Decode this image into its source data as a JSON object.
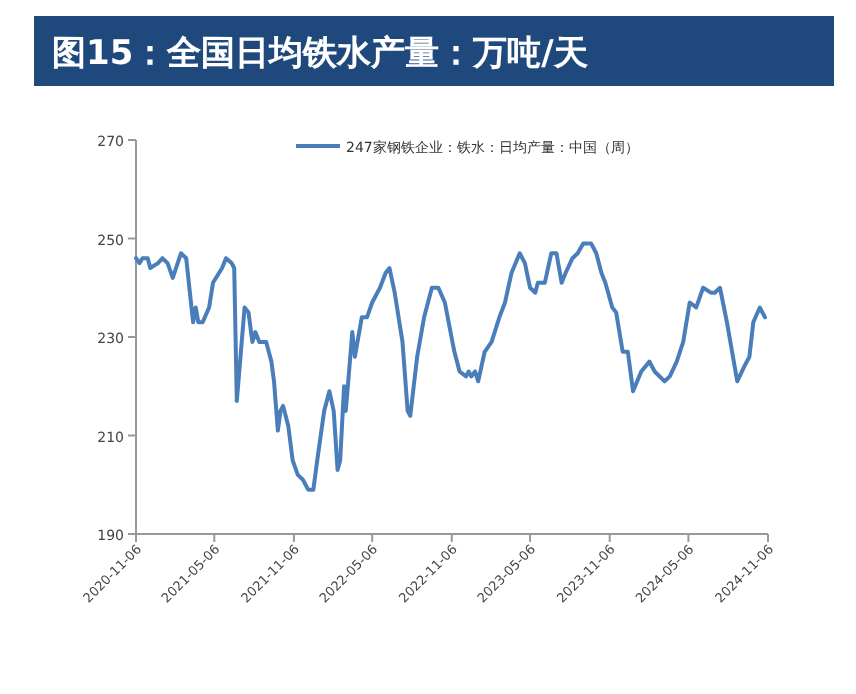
{
  "chart_data": {
    "type": "line",
    "title": "图15：全国日均铁水产量：万吨/天",
    "x": [
      "2020-11-06",
      "2020-11-14",
      "2020-11-21",
      "2020-12-03",
      "2020-12-09",
      "2020-12-27",
      "2021-01-06",
      "2021-01-18",
      "2021-01-30",
      "2021-02-18",
      "2021-03-02",
      "2021-03-18",
      "2021-03-24",
      "2021-03-30",
      "2021-04-09",
      "2021-04-24",
      "2021-05-03",
      "2021-05-24",
      "2021-06-02",
      "2021-06-15",
      "2021-06-21",
      "2021-06-27",
      "2021-07-15",
      "2021-07-24",
      "2021-08-02",
      "2021-08-09",
      "2021-08-18",
      "2021-09-03",
      "2021-09-15",
      "2021-09-21",
      "2021-09-30",
      "2021-10-06",
      "2021-10-12",
      "2021-10-24",
      "2021-11-03",
      "2021-11-15",
      "2021-11-27",
      "2021-12-09",
      "2021-12-21",
      "2021-12-30",
      "2022-01-15",
      "2022-01-27",
      "2022-02-06",
      "2022-02-15",
      "2022-02-21",
      "2022-03-02",
      "2022-03-06",
      "2022-03-21",
      "2022-03-27",
      "2022-04-12",
      "2022-04-24",
      "2022-05-06",
      "2022-05-24",
      "2022-06-06",
      "2022-06-15",
      "2022-06-27",
      "2022-07-15",
      "2022-07-27",
      "2022-08-02",
      "2022-08-18",
      "2022-09-03",
      "2022-09-21",
      "2022-10-06",
      "2022-10-21",
      "2022-11-12",
      "2022-11-24",
      "2022-12-09",
      "2022-12-15",
      "2022-12-21",
      "2022-12-30",
      "2023-01-06",
      "2023-01-21",
      "2023-02-06",
      "2023-02-24",
      "2023-03-09",
      "2023-03-24",
      "2023-04-12",
      "2023-04-24",
      "2023-05-06",
      "2023-05-18",
      "2023-05-24",
      "2023-06-09",
      "2023-06-24",
      "2023-07-06",
      "2023-07-18",
      "2023-07-27",
      "2023-08-12",
      "2023-08-24",
      "2023-09-06",
      "2023-09-24",
      "2023-10-06",
      "2023-10-18",
      "2023-10-27",
      "2023-11-12",
      "2023-11-21",
      "2023-12-06",
      "2023-12-18",
      "2023-12-30",
      "2024-01-18",
      "2024-02-06",
      "2024-02-18",
      "2024-03-12",
      "2024-03-24",
      "2024-04-09",
      "2024-04-24",
      "2024-05-09",
      "2024-05-24",
      "2024-06-09",
      "2024-06-27",
      "2024-07-06",
      "2024-07-18",
      "2024-08-03",
      "2024-08-27",
      "2024-09-12",
      "2024-09-24",
      "2024-10-03",
      "2024-10-18",
      "2024-10-30"
    ],
    "series": [
      {
        "name": "247家钢铁企业：铁水：日均产量：中国（周）",
        "color": "#4a7ebb",
        "values": [
          246,
          245,
          246,
          246,
          244,
          245,
          246,
          245,
          242,
          247,
          246,
          233,
          236,
          233,
          233,
          236,
          241,
          244,
          246,
          245,
          244,
          217,
          236,
          235,
          229,
          231,
          229,
          229,
          225,
          221,
          211,
          215,
          216,
          212,
          205,
          202,
          201,
          199,
          199,
          205,
          215,
          219,
          215,
          203,
          205,
          220,
          215,
          231,
          226,
          234,
          234,
          237,
          240,
          243,
          244,
          239,
          229,
          215,
          214,
          226,
          234,
          240,
          240,
          237,
          227,
          223,
          222,
          223,
          222,
          223,
          221,
          227,
          229,
          234,
          237,
          243,
          247,
          245,
          240,
          239,
          241,
          241,
          247,
          247,
          241,
          243,
          246,
          247,
          249,
          249,
          247,
          243,
          241,
          236,
          235,
          227,
          227,
          219,
          223,
          225,
          223,
          221,
          222,
          225,
          229,
          237,
          236,
          240,
          239,
          239,
          240,
          233,
          221,
          224,
          226,
          233,
          236,
          234
        ]
      }
    ],
    "xlim": [
      "2020-11-06",
      "2024-11-06"
    ],
    "xticks": [
      "2020-11-06",
      "2021-05-06",
      "2021-11-06",
      "2022-05-06",
      "2022-11-06",
      "2023-05-06",
      "2023-11-06",
      "2024-05-06",
      "2024-11-06"
    ],
    "ylim": [
      190,
      270
    ],
    "yticks": [
      190,
      210,
      230,
      250,
      270
    ],
    "legend": "top"
  }
}
